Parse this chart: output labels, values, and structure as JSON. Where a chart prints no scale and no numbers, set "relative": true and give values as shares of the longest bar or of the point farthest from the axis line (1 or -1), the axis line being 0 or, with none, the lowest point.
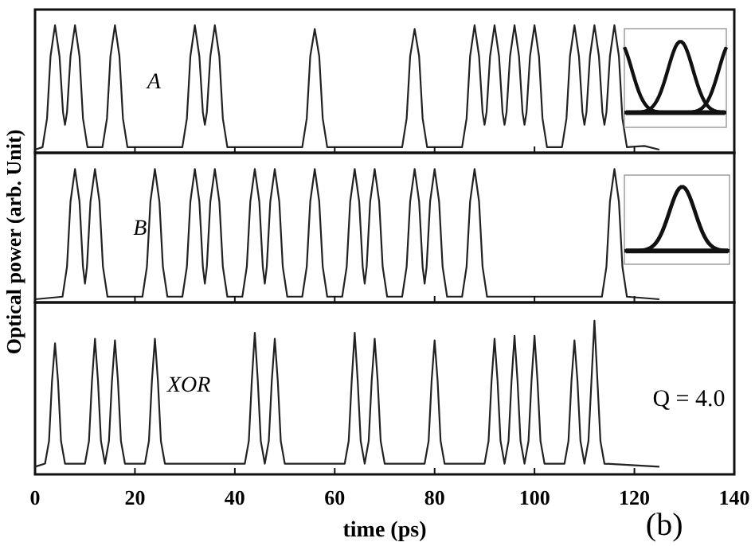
{
  "chart_data": [
    {
      "type": "line",
      "relative": true,
      "xlim": [
        0,
        140
      ],
      "xticks": [
        0,
        20,
        40,
        60,
        80,
        100,
        120,
        140
      ],
      "tick_labels": false,
      "annotations": [
        "A"
      ],
      "series": [
        {
          "color": "#222222",
          "x": [
            0,
            1.5,
            2.4,
            3.1,
            4,
            4.9,
            5.6,
            6,
            6.4,
            7.1,
            8,
            8.9,
            9.6,
            10.5,
            13.5,
            14.4,
            15.1,
            16,
            16.9,
            17.6,
            18.5,
            29.5,
            30.4,
            31.1,
            32,
            32.9,
            33.6,
            34,
            34.4,
            35.1,
            36,
            36.9,
            37.6,
            38.5,
            53.5,
            54.4,
            55.1,
            56,
            56.9,
            57.6,
            58.5,
            73.5,
            74.4,
            75.1,
            76,
            76.9,
            77.6,
            78.5,
            85.5,
            86.4,
            87.1,
            88,
            88.9,
            89.6,
            90,
            90.4,
            91.1,
            92,
            92.9,
            93.6,
            94,
            94.4,
            95.1,
            96,
            96.9,
            97.6,
            98,
            98.4,
            99.1,
            100,
            100.9,
            101.6,
            102.5,
            105.5,
            106.4,
            107.1,
            108,
            108.9,
            109.6,
            110,
            110.4,
            111.1,
            112,
            112.9,
            113.6,
            114,
            114.4,
            115.1,
            116,
            116.9,
            117.6,
            118.5,
            122,
            125
          ],
          "values": [
            0,
            0.02,
            0.25,
            0.75,
            1,
            0.75,
            0.3,
            0.2,
            0.3,
            0.75,
            1,
            0.75,
            0.25,
            0.02,
            0.02,
            0.25,
            0.75,
            1,
            0.75,
            0.25,
            0.02,
            0.02,
            0.25,
            0.75,
            1,
            0.75,
            0.3,
            0.2,
            0.3,
            0.75,
            1,
            0.75,
            0.25,
            0.02,
            0.02,
            0.25,
            0.75,
            0.97,
            0.75,
            0.25,
            0.02,
            0.02,
            0.25,
            0.75,
            0.97,
            0.75,
            0.25,
            0.02,
            0.02,
            0.25,
            0.75,
            1,
            0.75,
            0.3,
            0.2,
            0.3,
            0.75,
            1,
            0.75,
            0.3,
            0.2,
            0.3,
            0.75,
            1,
            0.75,
            0.3,
            0.2,
            0.3,
            0.75,
            1,
            0.75,
            0.25,
            0.02,
            0.02,
            0.25,
            0.75,
            1,
            0.75,
            0.3,
            0.2,
            0.3,
            0.75,
            1,
            0.75,
            0.3,
            0.2,
            0.3,
            0.75,
            1,
            0.75,
            0.25,
            0.02,
            0.03,
            0
          ]
        }
      ]
    },
    {
      "type": "line",
      "relative": true,
      "xlim": [
        0,
        140
      ],
      "xticks": [
        0,
        20,
        40,
        60,
        80,
        100,
        120,
        140
      ],
      "tick_labels": false,
      "ylabel": "Optical power (arb. Unit)",
      "annotations": [
        "B"
      ],
      "series": [
        {
          "color": "#222222",
          "x": [
            0,
            5.5,
            6.4,
            7.1,
            8,
            8.9,
            9.6,
            10,
            10.4,
            11.1,
            12,
            12.9,
            13.6,
            14.5,
            21.5,
            22.4,
            23.1,
            24,
            24.9,
            25.6,
            26.5,
            29.5,
            30.4,
            31.1,
            32,
            32.9,
            33.6,
            34,
            34.4,
            35.1,
            36,
            36.9,
            37.6,
            38.5,
            41.5,
            42.4,
            43.1,
            44,
            44.9,
            45.6,
            46,
            46.4,
            47.1,
            48,
            48.9,
            49.6,
            50.5,
            53.5,
            54.4,
            55.1,
            56,
            56.9,
            57.6,
            58.5,
            61.5,
            62.4,
            63.1,
            64,
            64.9,
            65.6,
            66,
            66.4,
            67.1,
            68,
            68.9,
            69.6,
            70.5,
            73.5,
            74.4,
            75.1,
            76,
            76.9,
            77.6,
            78,
            78.4,
            79.1,
            80,
            80.9,
            81.6,
            82.5,
            85.5,
            86.4,
            87.1,
            88,
            88.9,
            89.6,
            90.5,
            113.5,
            114.4,
            115.1,
            116,
            116.9,
            117.6,
            118.5,
            125
          ],
          "values": [
            0,
            0.02,
            0.25,
            0.75,
            1,
            0.75,
            0.25,
            0.12,
            0.25,
            0.75,
            1,
            0.75,
            0.25,
            0.02,
            0.02,
            0.25,
            0.75,
            1,
            0.75,
            0.25,
            0.02,
            0.02,
            0.25,
            0.75,
            1,
            0.75,
            0.25,
            0.12,
            0.25,
            0.75,
            1,
            0.75,
            0.25,
            0.02,
            0.02,
            0.25,
            0.75,
            1,
            0.75,
            0.25,
            0.12,
            0.25,
            0.75,
            1,
            0.75,
            0.25,
            0.02,
            0.02,
            0.25,
            0.75,
            1,
            0.75,
            0.25,
            0.02,
            0.02,
            0.25,
            0.75,
            1,
            0.75,
            0.25,
            0.12,
            0.25,
            0.75,
            1,
            0.75,
            0.25,
            0.02,
            0.02,
            0.25,
            0.75,
            1,
            0.75,
            0.25,
            0.12,
            0.25,
            0.75,
            1,
            0.75,
            0.25,
            0.02,
            0.02,
            0.25,
            0.75,
            1,
            0.75,
            0.25,
            0.02,
            0.02,
            0.25,
            0.75,
            1,
            0.75,
            0.25,
            0.02,
            0
          ]
        }
      ]
    },
    {
      "type": "line",
      "relative": true,
      "xlim": [
        0,
        140
      ],
      "xticks": [
        0,
        20,
        40,
        60,
        80,
        100,
        120,
        140
      ],
      "tick_labels": "x",
      "xlabel": "time (ps)",
      "annotations": [
        "XOR",
        "Q = 4.0",
        "(b)"
      ],
      "series": [
        {
          "color": "#222222",
          "x": [
            0,
            2,
            2.8,
            3.4,
            4,
            4.6,
            5.2,
            6,
            10,
            10.8,
            11.4,
            12,
            12.6,
            13.2,
            14,
            14.8,
            15.4,
            16,
            16.6,
            17.2,
            18,
            22,
            22.8,
            23.4,
            24,
            24.6,
            25.2,
            26,
            42,
            42.8,
            43.4,
            44,
            44.6,
            45.2,
            46,
            46.8,
            47.4,
            48,
            48.6,
            49.2,
            50,
            62,
            62.8,
            63.4,
            64,
            64.6,
            65.2,
            66,
            66.8,
            67.4,
            68,
            68.6,
            69.2,
            70,
            78,
            78.8,
            79.4,
            80,
            80.6,
            81.2,
            82,
            90,
            90.8,
            91.4,
            92,
            92.6,
            93.2,
            94,
            94.8,
            95.4,
            96,
            96.6,
            97.2,
            98,
            98.8,
            99.4,
            100,
            100.6,
            101.2,
            102,
            106,
            106.8,
            107.4,
            108,
            108.6,
            109.2,
            110,
            110.8,
            111.4,
            112,
            112.6,
            113.2,
            114,
            125
          ],
          "values": [
            0.03,
            0.05,
            0.2,
            0.6,
            0.85,
            0.6,
            0.2,
            0.05,
            0.05,
            0.2,
            0.6,
            0.88,
            0.6,
            0.2,
            0.05,
            0.2,
            0.6,
            0.87,
            0.6,
            0.2,
            0.05,
            0.05,
            0.2,
            0.6,
            0.88,
            0.6,
            0.2,
            0.05,
            0.05,
            0.2,
            0.6,
            0.92,
            0.6,
            0.2,
            0.05,
            0.2,
            0.6,
            0.88,
            0.6,
            0.2,
            0.05,
            0.05,
            0.2,
            0.6,
            0.92,
            0.6,
            0.2,
            0.05,
            0.2,
            0.6,
            0.88,
            0.6,
            0.2,
            0.05,
            0.05,
            0.2,
            0.6,
            0.87,
            0.6,
            0.2,
            0.05,
            0.05,
            0.2,
            0.6,
            0.88,
            0.6,
            0.2,
            0.05,
            0.2,
            0.6,
            0.9,
            0.6,
            0.2,
            0.05,
            0.2,
            0.6,
            0.9,
            0.6,
            0.2,
            0.05,
            0.05,
            0.2,
            0.6,
            0.87,
            0.6,
            0.2,
            0.05,
            0.2,
            0.6,
            1,
            0.6,
            0.2,
            0.05,
            0.03
          ]
        }
      ]
    }
  ]
}
